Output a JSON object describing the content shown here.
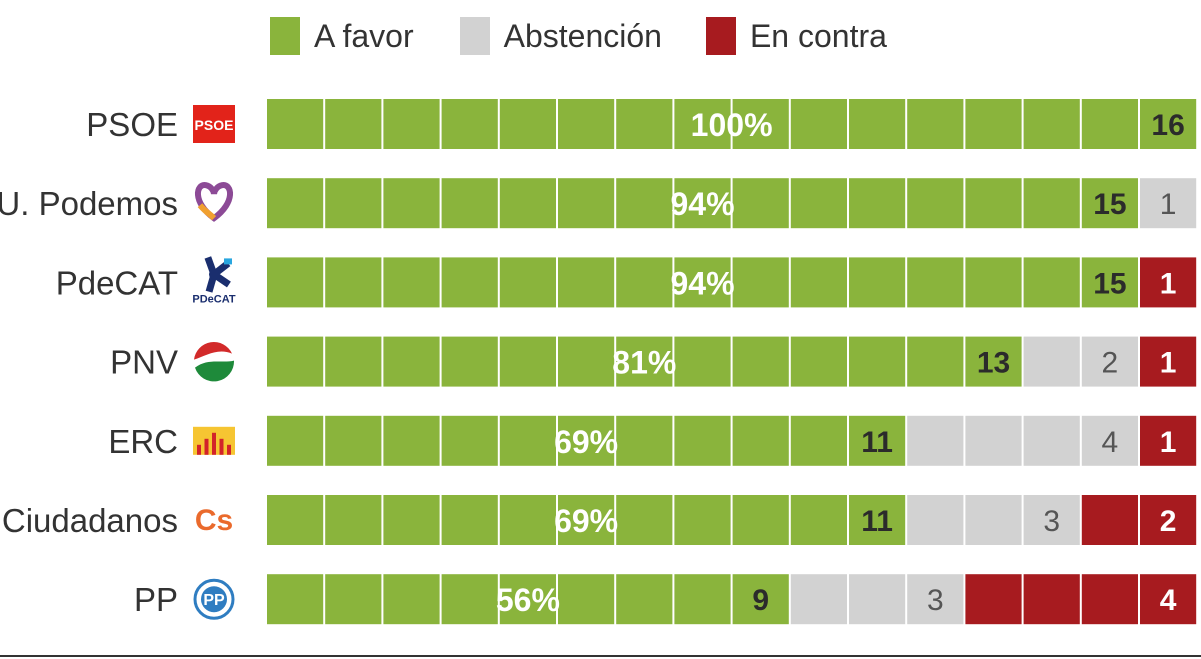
{
  "legend": [
    {
      "label": "A favor",
      "color": "#8ab43c"
    },
    {
      "label": "Abstención",
      "color": "#d2d2d2"
    },
    {
      "label": "En contra",
      "color": "#a71b1f"
    }
  ],
  "chart_data": {
    "type": "bar",
    "stacked": true,
    "orientation": "horizontal",
    "categories": [
      "PSOE",
      "U. Podemos",
      "PdeCAT",
      "PNV",
      "ERC",
      "Ciudadanos",
      "PP"
    ],
    "series": [
      {
        "name": "A favor",
        "values": [
          16,
          15,
          15,
          13,
          11,
          11,
          9
        ]
      },
      {
        "name": "Abstención",
        "values": [
          0,
          1,
          0,
          2,
          4,
          3,
          3
        ]
      },
      {
        "name": "En contra",
        "values": [
          0,
          0,
          1,
          1,
          1,
          2,
          4
        ]
      }
    ],
    "favor_percent_labels": [
      "100%",
      "94%",
      "94%",
      "81%",
      "69%",
      "69%",
      "56%"
    ],
    "total_per_row": 16,
    "party_logos": [
      "psoe-logo",
      "podemos-heart-logo",
      "pdecat-logo",
      "pnv-logo",
      "erc-logo",
      "ciudadanos-logo",
      "pp-logo"
    ],
    "pdecat_logo_text": "PDeCAT",
    "psoe_logo_text": "PSOE",
    "ciudadanos_logo_text": "Cs",
    "pp_logo_text": "PP"
  }
}
